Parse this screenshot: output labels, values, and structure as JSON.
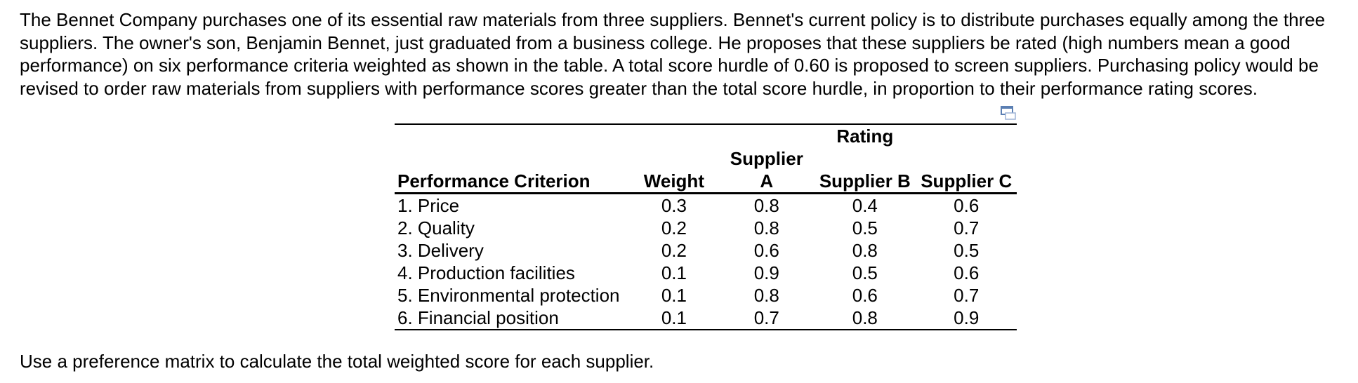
{
  "intro_text": "The Bennet Company purchases one of its essential raw materials from three suppliers. Bennet's current policy is to distribute purchases equally among the three suppliers. The owner's son, Benjamin Bennet, just graduated from a business college. He proposes that these suppliers be rated (high numbers mean a good performance) on six performance criteria weighted as shown in the table. A total score hurdle of 0.60 is proposed to screen suppliers. Purchasing policy would be revised to order raw materials from suppliers with performance scores greater than the total score hurdle, in proportion to their performance rating scores.",
  "table": {
    "group_header": "Rating",
    "columns": {
      "criterion": "Performance Criterion",
      "weight": "Weight",
      "supplier_a_line1": "Supplier",
      "supplier_a_line2": "A",
      "supplier_b": "Supplier B",
      "supplier_c": "Supplier C"
    },
    "rows": [
      {
        "criterion": "1. Price",
        "weight": "0.3",
        "a": "0.8",
        "b": "0.4",
        "c": "0.6"
      },
      {
        "criterion": "2. Quality",
        "weight": "0.2",
        "a": "0.8",
        "b": "0.5",
        "c": "0.7"
      },
      {
        "criterion": "3. Delivery",
        "weight": "0.2",
        "a": "0.6",
        "b": "0.8",
        "c": "0.5"
      },
      {
        "criterion": "4. Production facilities",
        "weight": "0.1",
        "a": "0.9",
        "b": "0.5",
        "c": "0.6"
      },
      {
        "criterion": "5. Environmental protection",
        "weight": "0.1",
        "a": "0.8",
        "b": "0.6",
        "c": "0.7"
      },
      {
        "criterion": "6. Financial position",
        "weight": "0.1",
        "a": "0.7",
        "b": "0.8",
        "c": "0.9"
      }
    ]
  },
  "copy_icon": "copy-table-icon",
  "footer_text": "Use a preference matrix to calculate the total weighted score for each supplier."
}
